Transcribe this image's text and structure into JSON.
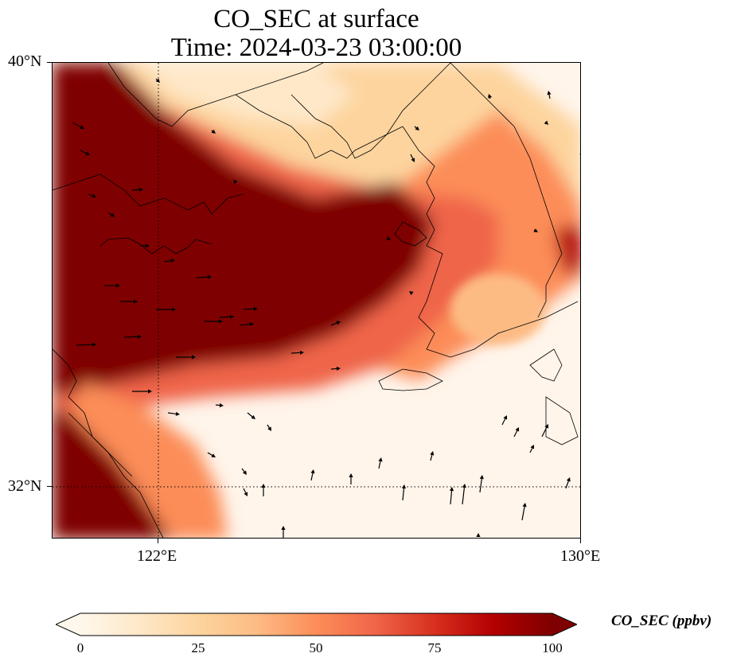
{
  "title": {
    "line1": "CO_SEC at surface",
    "line2": "Time: 2024-03-23 03:00:00"
  },
  "map": {
    "extent": {
      "lon_min": 120.4,
      "lon_max": 130.0,
      "lat_min": 31.2,
      "lat_max": 40.0
    },
    "lat_ticks": [
      {
        "value": 40,
        "label": "40°N"
      },
      {
        "value": 32,
        "label": "32°N"
      }
    ],
    "lon_ticks": [
      {
        "value": 122,
        "label": "122°E"
      },
      {
        "value": 130,
        "label": "130°E"
      }
    ],
    "gridlines": "dotted at 122°E and 32°N",
    "plume_color": "#7f0000",
    "background_color": "#fff5eb"
  },
  "colorbar": {
    "label": "CO_SEC (ppbv)",
    "min": 0,
    "max": 100,
    "ticks": [
      "0",
      "25",
      "50",
      "75",
      "100"
    ],
    "colormap": "OrRd",
    "stops": [
      "#fff7ec",
      "#fee8c8",
      "#fdd49e",
      "#fdbb84",
      "#fc8d59",
      "#ef6548",
      "#d7301f",
      "#b30000",
      "#7f0000"
    ],
    "extend": "both"
  }
}
